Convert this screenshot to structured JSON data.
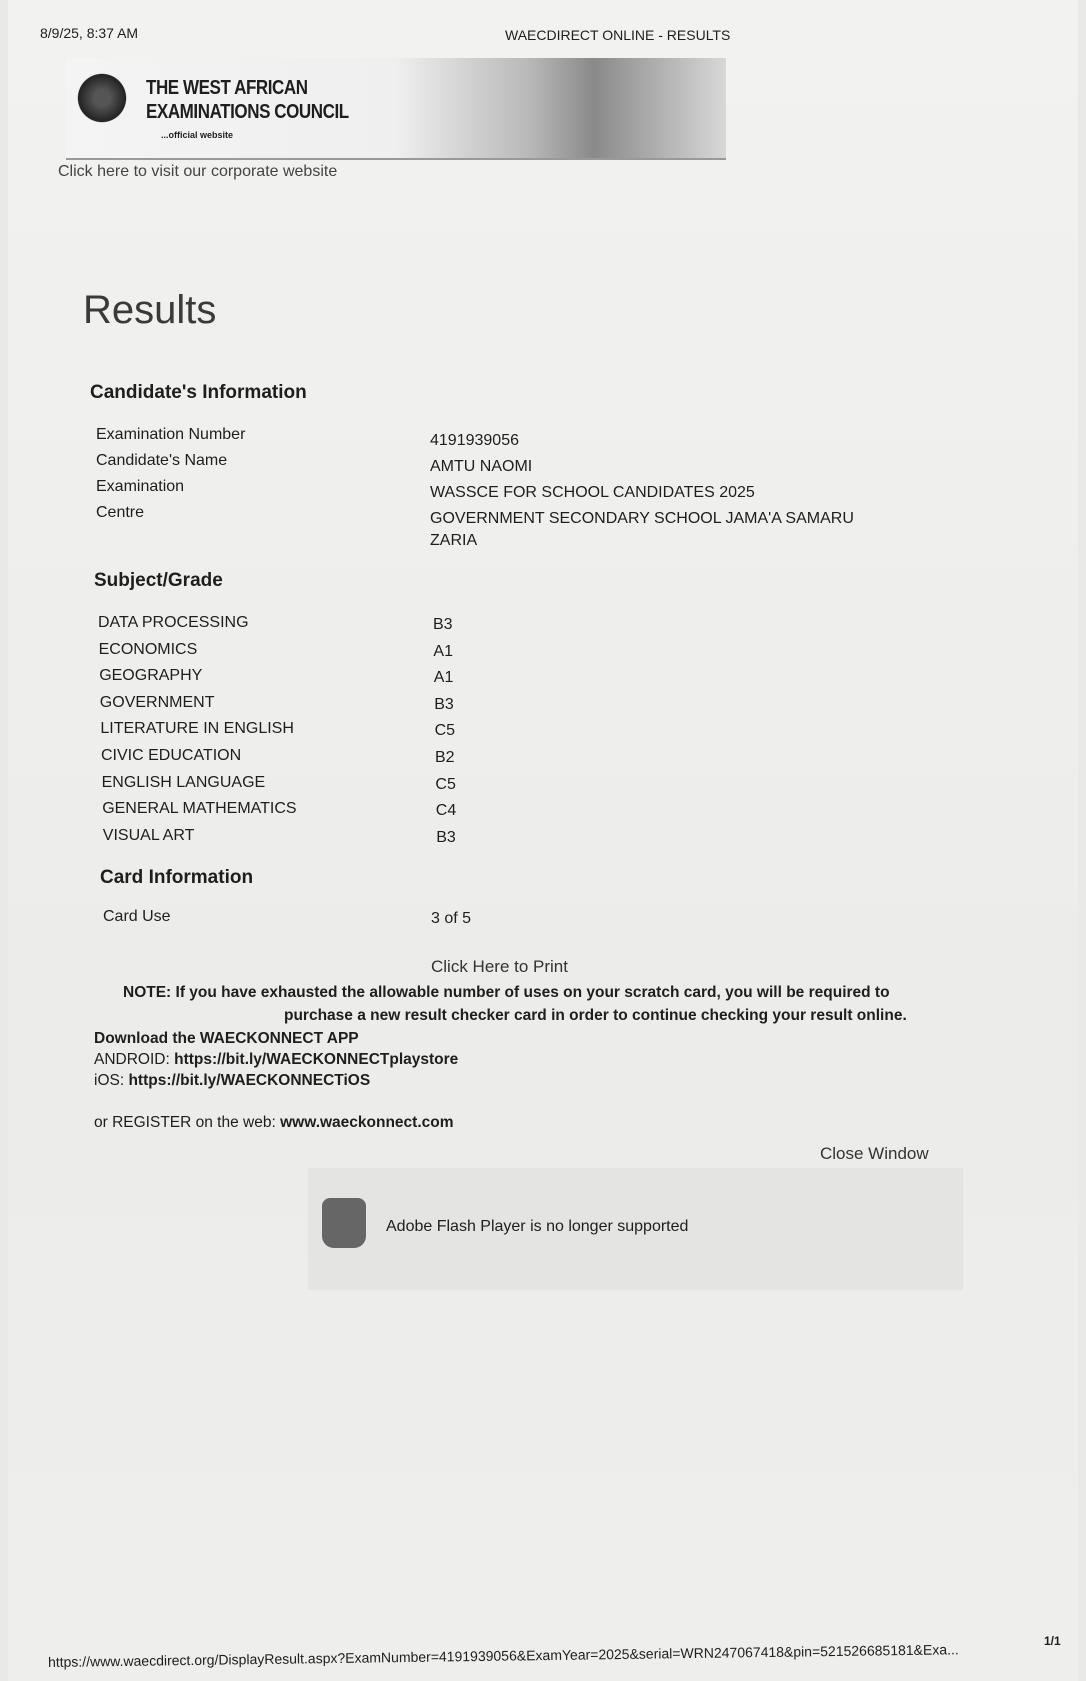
{
  "print_header": {
    "datetime": "8/9/25, 8:37 AM",
    "page_title": "WAECDIRECT ONLINE - RESULTS"
  },
  "banner": {
    "org_line1": "THE WEST AFRICAN",
    "org_line2": "EXAMINATIONS COUNCIL",
    "tagline": "...official website",
    "corporate_link": "Click here to visit our corporate website"
  },
  "main": {
    "title": "Results",
    "candidate_heading": "Candidate's Information",
    "candidate": [
      {
        "label": "Examination Number",
        "value": "4191939056"
      },
      {
        "label": "Candidate's Name",
        "value": "AMTU NAOMI"
      },
      {
        "label": "Examination",
        "value": "WASSCE FOR SCHOOL CANDIDATES 2025"
      },
      {
        "label": "Centre",
        "value": "GOVERNMENT SECONDARY SCHOOL JAMA'A SAMARU ZARIA"
      }
    ],
    "subject_heading": "Subject/Grade",
    "subjects": [
      {
        "subject": "DATA PROCESSING",
        "grade": "B3"
      },
      {
        "subject": "ECONOMICS",
        "grade": "A1"
      },
      {
        "subject": "GEOGRAPHY",
        "grade": "A1"
      },
      {
        "subject": "GOVERNMENT",
        "grade": "B3"
      },
      {
        "subject": "LITERATURE IN ENGLISH",
        "grade": "C5"
      },
      {
        "subject": "CIVIC EDUCATION",
        "grade": "B2"
      },
      {
        "subject": "ENGLISH LANGUAGE",
        "grade": "C5"
      },
      {
        "subject": "GENERAL MATHEMATICS",
        "grade": "C4"
      },
      {
        "subject": "VISUAL ART",
        "grade": "B3"
      }
    ],
    "card_heading": "Card Information",
    "card": {
      "label": "Card Use",
      "value": "3 of 5"
    },
    "print_link": "Click Here to Print",
    "note_label": "NOTE:",
    "note_line1": "If you have exhausted the allowable number of uses on your scratch card, you will be required to",
    "note_line2": "purchase a new result checker card in order to continue checking your result online.",
    "download": "Download the WAECKONNECT APP",
    "android_label": "ANDROID:",
    "android_url": "https://bit.ly/WAECKONNECTplaystore",
    "ios_label": "iOS:",
    "ios_url": "https://bit.ly/WAECKONNECTiOS",
    "register_label": "or REGISTER on the web:",
    "register_url": "www.waeckonnect.com",
    "close": "Close Window",
    "flash_message": "Adobe Flash Player is no longer supported"
  },
  "print_footer": {
    "url": "https://www.waecdirect.org/DisplayResult.aspx?ExamNumber=4191939056&ExamYear=2025&serial=WRN247067418&pin=521526685181&Exa...",
    "page": "1/1"
  }
}
